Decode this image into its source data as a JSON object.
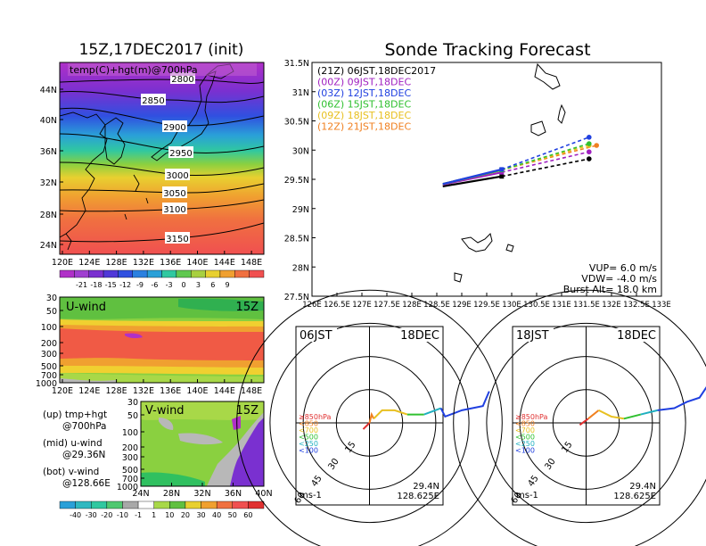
{
  "map_panel": {
    "title": "15Z,17DEC2017 (init)",
    "label": "temp(C)+hgt(m)@700hPa",
    "lat_ticks": [
      "44N",
      "40N",
      "36N",
      "32N",
      "28N",
      "24N"
    ],
    "lon_ticks": [
      "120E",
      "124E",
      "128E",
      "132E",
      "136E",
      "140E",
      "144E",
      "148E"
    ],
    "contour_labels": [
      "2800",
      "2850",
      "2900",
      "2950",
      "3000",
      "3050",
      "3100",
      "3150"
    ],
    "colorbar_labels": [
      "-21",
      "-18",
      "-15",
      "-12",
      "-9",
      "-6",
      "-3",
      "0",
      "3",
      "6",
      "9"
    ]
  },
  "uwind_panel": {
    "label": "U-wind",
    "time": "15Z",
    "p_ticks": [
      "30",
      "50",
      "100",
      "200",
      "300",
      "500",
      "700",
      "1000"
    ],
    "lon_ticks": [
      "120E",
      "124E",
      "128E",
      "132E",
      "136E",
      "140E",
      "144E",
      "148E"
    ]
  },
  "vwind_panel": {
    "label": "V-wind",
    "time": "15Z",
    "p_ticks": [
      "30",
      "50",
      "100",
      "200",
      "300",
      "500",
      "700",
      "1000"
    ],
    "lat_ticks": [
      "24N",
      "28N",
      "32N",
      "36N",
      "40N"
    ],
    "colorbar_labels": [
      "-40",
      "-30",
      "-20",
      "-10",
      "-1",
      "1",
      "10",
      "20",
      "30",
      "40",
      "50",
      "60"
    ]
  },
  "legend_text": [
    {
      "line1": "(up) tmp+hgt",
      "line2": "@700hPa"
    },
    {
      "line1": "(mid) u-wind",
      "line2": "@29.36N"
    },
    {
      "line1": "(bot) v-wind",
      "line2": "@128.66E"
    }
  ],
  "track_panel": {
    "title": "Sonde Tracking Forecast",
    "lat_ticks": [
      "31.5N",
      "31N",
      "30.5N",
      "30N",
      "29.5N",
      "29N",
      "28.5N",
      "28N",
      "27.5N"
    ],
    "lon_ticks": [
      "126E",
      "126.5E",
      "127E",
      "127.5E",
      "128E",
      "128.5E",
      "129E",
      "129.5E",
      "130E",
      "130.5E",
      "131E",
      "131.5E",
      "132E",
      "132.5E",
      "133E"
    ],
    "legend": [
      {
        "text": "(21Z) 06JST,18DEC2017",
        "color": "#000000"
      },
      {
        "text": "(00Z) 09JST,18DEC",
        "color": "#a020c0"
      },
      {
        "text": "(03Z) 12JST,18DEC",
        "color": "#2040e0"
      },
      {
        "text": "(06Z) 15JST,18DEC",
        "color": "#30c030"
      },
      {
        "text": "(09Z) 18JST,18DEC",
        "color": "#e8c020"
      },
      {
        "text": "(12Z) 21JST,18DEC",
        "color": "#f08020"
      }
    ],
    "vup": "VUP= 6.0 m/s",
    "vdw": "VDW= -4.0 m/s",
    "burst": "Burst Alt= 18.0 km"
  },
  "hodographs": [
    {
      "time": "06JST",
      "date": "18DEC",
      "lat": "29.4N",
      "lon": "128.625E",
      "unit": "ms-1",
      "ring_labels": [
        "15",
        "30",
        "45",
        "60"
      ],
      "levels": [
        {
          "t": "≥850hPa",
          "c": "#e03030"
        },
        {
          "t": "<850",
          "c": "#f08020"
        },
        {
          "t": "<700",
          "c": "#e8c020"
        },
        {
          "t": "<500",
          "c": "#30c030"
        },
        {
          "t": "<250",
          "c": "#20b0c0"
        },
        {
          "t": "<100",
          "c": "#2040e0"
        }
      ]
    },
    {
      "time": "18JST",
      "date": "18DEC",
      "lat": "29.4N",
      "lon": "128.625E",
      "unit": "ms-1",
      "ring_labels": [
        "15",
        "30",
        "45",
        "60"
      ],
      "levels": [
        {
          "t": "≥850hPa",
          "c": "#e03030"
        },
        {
          "t": "<850",
          "c": "#f08020"
        },
        {
          "t": "<700",
          "c": "#e8c020"
        },
        {
          "t": "<500",
          "c": "#30c030"
        },
        {
          "t": "<250",
          "c": "#20b0c0"
        },
        {
          "t": "<100",
          "c": "#2040e0"
        }
      ]
    }
  ],
  "chart_data": [
    {
      "type": "heatmap",
      "title": "15Z,17DEC2017 (init)",
      "note": "temp(C)+hgt(m)@700hPa",
      "x_range": [
        120,
        150
      ],
      "y_range": [
        22,
        47
      ],
      "contours": [
        2800,
        2850,
        2900,
        2950,
        3000,
        3050,
        3100,
        3150
      ],
      "color_levels": [
        -21,
        -18,
        -15,
        -12,
        -9,
        -6,
        -3,
        0,
        3,
        6,
        9
      ]
    },
    {
      "type": "heatmap",
      "title": "U-wind",
      "note": "15Z",
      "x_range": [
        120,
        150
      ],
      "y_range": [
        1000,
        30
      ]
    },
    {
      "type": "heatmap",
      "title": "V-wind",
      "note": "15Z",
      "x_range": [
        24,
        40
      ],
      "y_range": [
        1000,
        30
      ],
      "color_levels": [
        -40,
        -30,
        -20,
        -10,
        -1,
        1,
        10,
        20,
        30,
        40,
        50,
        60
      ]
    },
    {
      "type": "line",
      "title": "Sonde Tracking Forecast",
      "xlim": [
        126,
        133
      ],
      "ylim": [
        27.5,
        31.5
      ],
      "series": [
        {
          "name": "(21Z) 06JST,18DEC2017",
          "x": [
            128.62,
            129.8,
            131.55
          ],
          "y": [
            29.38,
            29.55,
            29.85
          ]
        },
        {
          "name": "(00Z) 09JST,18DEC",
          "x": [
            128.62,
            129.8,
            131.55
          ],
          "y": [
            29.41,
            29.62,
            29.97
          ]
        },
        {
          "name": "(03Z) 12JST,18DEC",
          "x": [
            128.62,
            129.8,
            131.55
          ],
          "y": [
            29.42,
            29.67,
            30.22
          ]
        },
        {
          "name": "(06Z) 15JST,18DEC",
          "x": [
            128.62,
            129.8,
            131.55
          ],
          "y": [
            29.42,
            29.66,
            30.11
          ]
        },
        {
          "name": "(09Z) 18JST,18DEC",
          "x": [
            128.62,
            129.8,
            131.55
          ],
          "y": [
            29.42,
            29.66,
            30.08
          ]
        },
        {
          "name": "(12Z) 21JST,18DEC",
          "x": [
            128.62,
            129.8,
            131.7
          ],
          "y": [
            29.42,
            29.66,
            30.08
          ]
        }
      ]
    },
    {
      "type": "line",
      "title": "06JST 18DEC hodograph",
      "xlim": [
        -60,
        60
      ],
      "ylim": [
        -60,
        60
      ],
      "series": [
        {
          "name": "≥850hPa",
          "x": [
            -3,
            -1,
            0
          ],
          "y": [
            -3,
            -1,
            0
          ]
        },
        {
          "name": "<850",
          "x": [
            0,
            1,
            2
          ],
          "y": [
            0,
            4,
            2
          ]
        },
        {
          "name": "<700",
          "x": [
            2,
            6,
            12,
            18
          ],
          "y": [
            2,
            6,
            6,
            4
          ]
        },
        {
          "name": "<500",
          "x": [
            18,
            26
          ],
          "y": [
            4,
            4
          ]
        },
        {
          "name": "<250",
          "x": [
            26,
            34
          ],
          "y": [
            4,
            7
          ]
        },
        {
          "name": "<100",
          "x": [
            34,
            36,
            44,
            54,
            57
          ],
          "y": [
            7,
            3,
            6,
            8,
            15
          ]
        }
      ]
    },
    {
      "type": "line",
      "title": "18JST 18DEC hodograph",
      "xlim": [
        -60,
        60
      ],
      "ylim": [
        -60,
        60
      ],
      "series": [
        {
          "name": "≥850hPa",
          "x": [
            -3,
            1
          ],
          "y": [
            -1,
            2
          ]
        },
        {
          "name": "<850",
          "x": [
            1,
            6
          ],
          "y": [
            2,
            6
          ]
        },
        {
          "name": "<700",
          "x": [
            6,
            12,
            18
          ],
          "y": [
            6,
            3,
            2
          ]
        },
        {
          "name": "<500",
          "x": [
            18,
            26
          ],
          "y": [
            2,
            4
          ]
        },
        {
          "name": "<250",
          "x": [
            26,
            34
          ],
          "y": [
            4,
            6
          ]
        },
        {
          "name": "<100",
          "x": [
            34,
            42,
            48,
            54,
            58
          ],
          "y": [
            6,
            7,
            10,
            12,
            18
          ]
        }
      ]
    }
  ]
}
